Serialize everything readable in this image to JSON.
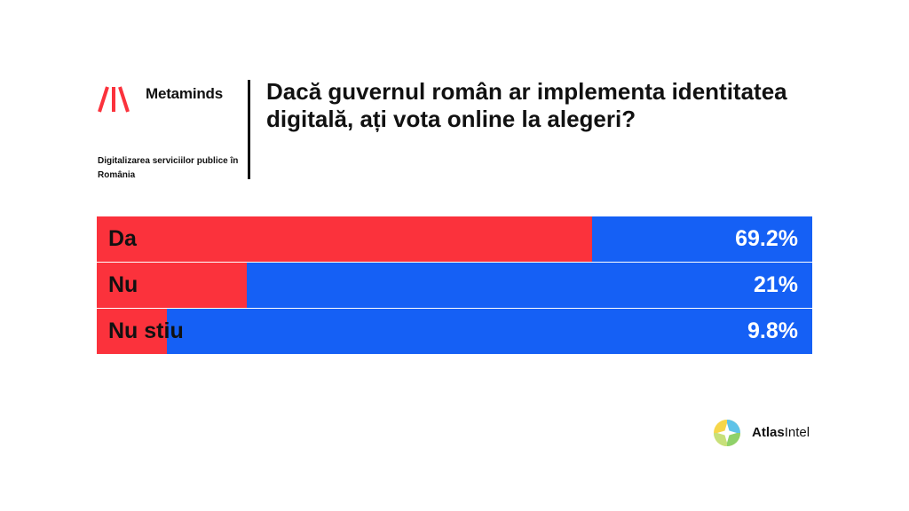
{
  "brand": {
    "name": "Metaminds",
    "subtitle": "Digitalizarea serviciilor publice în România"
  },
  "question": "Dacă guvernul român ar implementa identitatea digitală, ați vota online la alegeri?",
  "colors": {
    "answer_bar": "#fb323c",
    "track": "#1560f5",
    "value_text": "#ffffff"
  },
  "chart_data": {
    "type": "bar",
    "orientation": "horizontal",
    "categories": [
      "Da",
      "Nu",
      "Nu stiu"
    ],
    "values": [
      69.2,
      21,
      9.8
    ],
    "value_labels": [
      "69.2%",
      "21%",
      "9.8%"
    ],
    "xlim": [
      0,
      100
    ],
    "title": "Dacă guvernul român ar implementa identitatea digitală, ați vota online la alegeri?"
  },
  "footer": {
    "atlas_bold": "Atlas",
    "atlas_regular": "Intel"
  }
}
